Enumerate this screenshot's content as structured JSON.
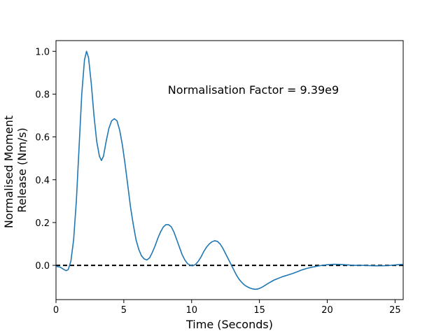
{
  "chart_data": {
    "type": "line",
    "title": "",
    "xlabel": "Time (Seconds)",
    "ylabel_lines": [
      "Normalised Moment",
      "Release (Nm/s)"
    ],
    "xlim": [
      0,
      25.6
    ],
    "ylim": [
      -0.16,
      1.05
    ],
    "xticks": [
      0,
      5,
      10,
      15,
      20,
      25
    ],
    "xtick_labels": [
      "0",
      "5",
      "10",
      "15",
      "20",
      "25"
    ],
    "yticks": [
      0.0,
      0.2,
      0.4,
      0.6,
      0.8,
      1.0
    ],
    "ytick_labels": [
      "0.0",
      "0.2",
      "0.4",
      "0.6",
      "0.8",
      "1.0"
    ],
    "grid": false,
    "annotation": "Normalisation Factor = 9.39e9",
    "line_color": "#1f77b4",
    "reference_line": {
      "y": 0.0,
      "style": "dashed",
      "color": "#000000"
    },
    "series": [
      {
        "x": [
          0,
          0.3,
          0.6,
          0.75,
          0.9,
          1.1,
          1.3,
          1.5,
          1.7,
          1.9,
          2.1,
          2.25,
          2.4,
          2.6,
          2.8,
          3.0,
          3.2,
          3.35,
          3.5,
          3.7,
          3.9,
          4.1,
          4.3,
          4.5,
          4.7,
          4.9,
          5.1,
          5.3,
          5.5,
          5.7,
          5.9,
          6.1,
          6.3,
          6.5,
          6.7,
          6.9,
          7.1,
          7.3,
          7.5,
          7.7,
          7.9,
          8.1,
          8.3,
          8.5,
          8.7,
          8.9,
          9.1,
          9.3,
          9.5,
          9.7,
          9.9,
          10.1,
          10.3,
          10.5,
          10.7,
          10.9,
          11.1,
          11.3,
          11.5,
          11.7,
          11.9,
          12.1,
          12.3,
          12.5,
          12.7,
          12.9,
          13.1,
          13.3,
          13.5,
          13.7,
          13.9,
          14.1,
          14.3,
          14.5,
          14.7,
          14.9,
          15.1,
          15.3,
          15.5,
          15.7,
          15.9,
          16.1,
          16.3,
          16.5,
          16.7,
          16.9,
          17.1,
          17.3,
          17.5,
          17.7,
          17.9,
          18.1,
          18.5,
          19.0,
          19.5,
          20.0,
          20.5,
          21.0,
          21.5,
          22.0,
          22.5,
          23.0,
          23.5,
          24.0,
          24.5,
          25.0,
          25.6
        ],
        "y": [
          -0.005,
          -0.008,
          -0.02,
          -0.025,
          -0.02,
          0.02,
          0.12,
          0.3,
          0.55,
          0.8,
          0.96,
          1.0,
          0.97,
          0.85,
          0.7,
          0.58,
          0.51,
          0.49,
          0.51,
          0.58,
          0.64,
          0.675,
          0.685,
          0.675,
          0.63,
          0.56,
          0.47,
          0.37,
          0.27,
          0.19,
          0.12,
          0.075,
          0.045,
          0.03,
          0.025,
          0.035,
          0.06,
          0.09,
          0.125,
          0.155,
          0.178,
          0.19,
          0.19,
          0.18,
          0.155,
          0.12,
          0.085,
          0.05,
          0.025,
          0.008,
          0.0,
          -0.002,
          0.005,
          0.02,
          0.04,
          0.065,
          0.085,
          0.1,
          0.11,
          0.115,
          0.112,
          0.1,
          0.08,
          0.055,
          0.03,
          0.005,
          -0.02,
          -0.045,
          -0.065,
          -0.08,
          -0.092,
          -0.1,
          -0.106,
          -0.11,
          -0.112,
          -0.11,
          -0.105,
          -0.098,
          -0.09,
          -0.082,
          -0.075,
          -0.068,
          -0.063,
          -0.058,
          -0.053,
          -0.049,
          -0.045,
          -0.041,
          -0.037,
          -0.032,
          -0.027,
          -0.022,
          -0.014,
          -0.007,
          -0.001,
          0.003,
          0.005,
          0.004,
          0.002,
          0.0,
          0.0,
          -0.001,
          -0.002,
          -0.002,
          -0.001,
          0.002,
          0.005
        ]
      }
    ]
  }
}
